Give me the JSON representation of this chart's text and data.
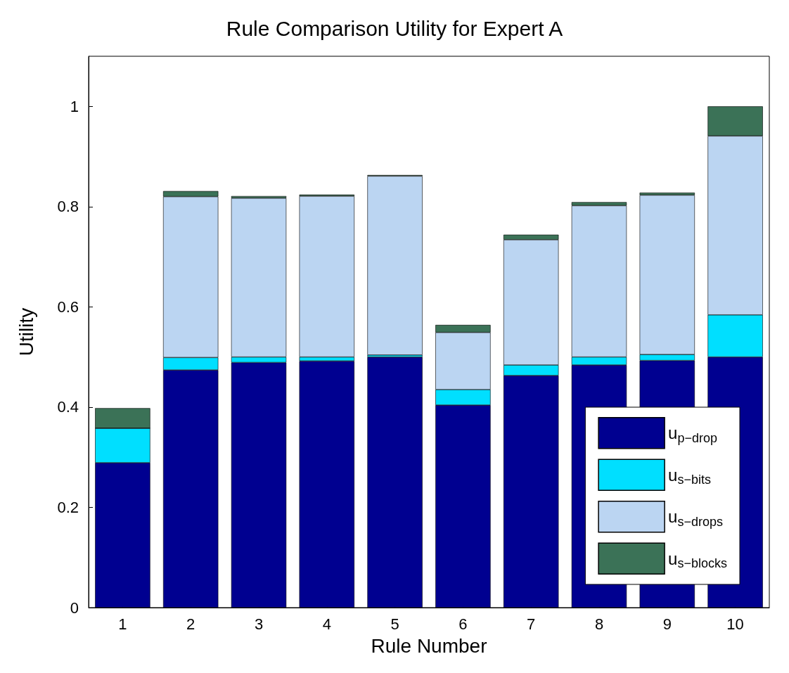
{
  "chart_data": {
    "type": "bar",
    "stacked": true,
    "title": "Rule Comparison Utility for Expert A",
    "xlabel": "Rule Number",
    "ylabel": "Utility",
    "categories": [
      "1",
      "2",
      "3",
      "4",
      "5",
      "6",
      "7",
      "8",
      "9",
      "10"
    ],
    "series": [
      {
        "name": "u$_{p−drop}$",
        "color": "#000090",
        "values": [
          0.289,
          0.474,
          0.489,
          0.492,
          0.5,
          0.404,
          0.463,
          0.484,
          0.493,
          0.5
        ]
      },
      {
        "name": "u$_{s−bits}$",
        "color": "#00dfff",
        "values": [
          0.069,
          0.025,
          0.011,
          0.008,
          0.004,
          0.031,
          0.021,
          0.016,
          0.012,
          0.084
        ]
      },
      {
        "name": "u$_{s−drops}$",
        "color": "#bbd5f2",
        "values": [
          0,
          0.321,
          0.317,
          0.321,
          0.357,
          0.114,
          0.25,
          0.302,
          0.318,
          0.357
        ]
      },
      {
        "name": "u$_{s−blocks}$",
        "color": "#3b7257",
        "values": [
          0.04,
          0.011,
          0.004,
          0.003,
          0.002,
          0.015,
          0.01,
          0.007,
          0.005,
          0.059
        ]
      }
    ],
    "ylim": [
      0,
      1.1
    ],
    "yticks": [
      0,
      0.2,
      0.4,
      0.6,
      0.8,
      1
    ],
    "grid": false,
    "legend": "bottom right"
  }
}
